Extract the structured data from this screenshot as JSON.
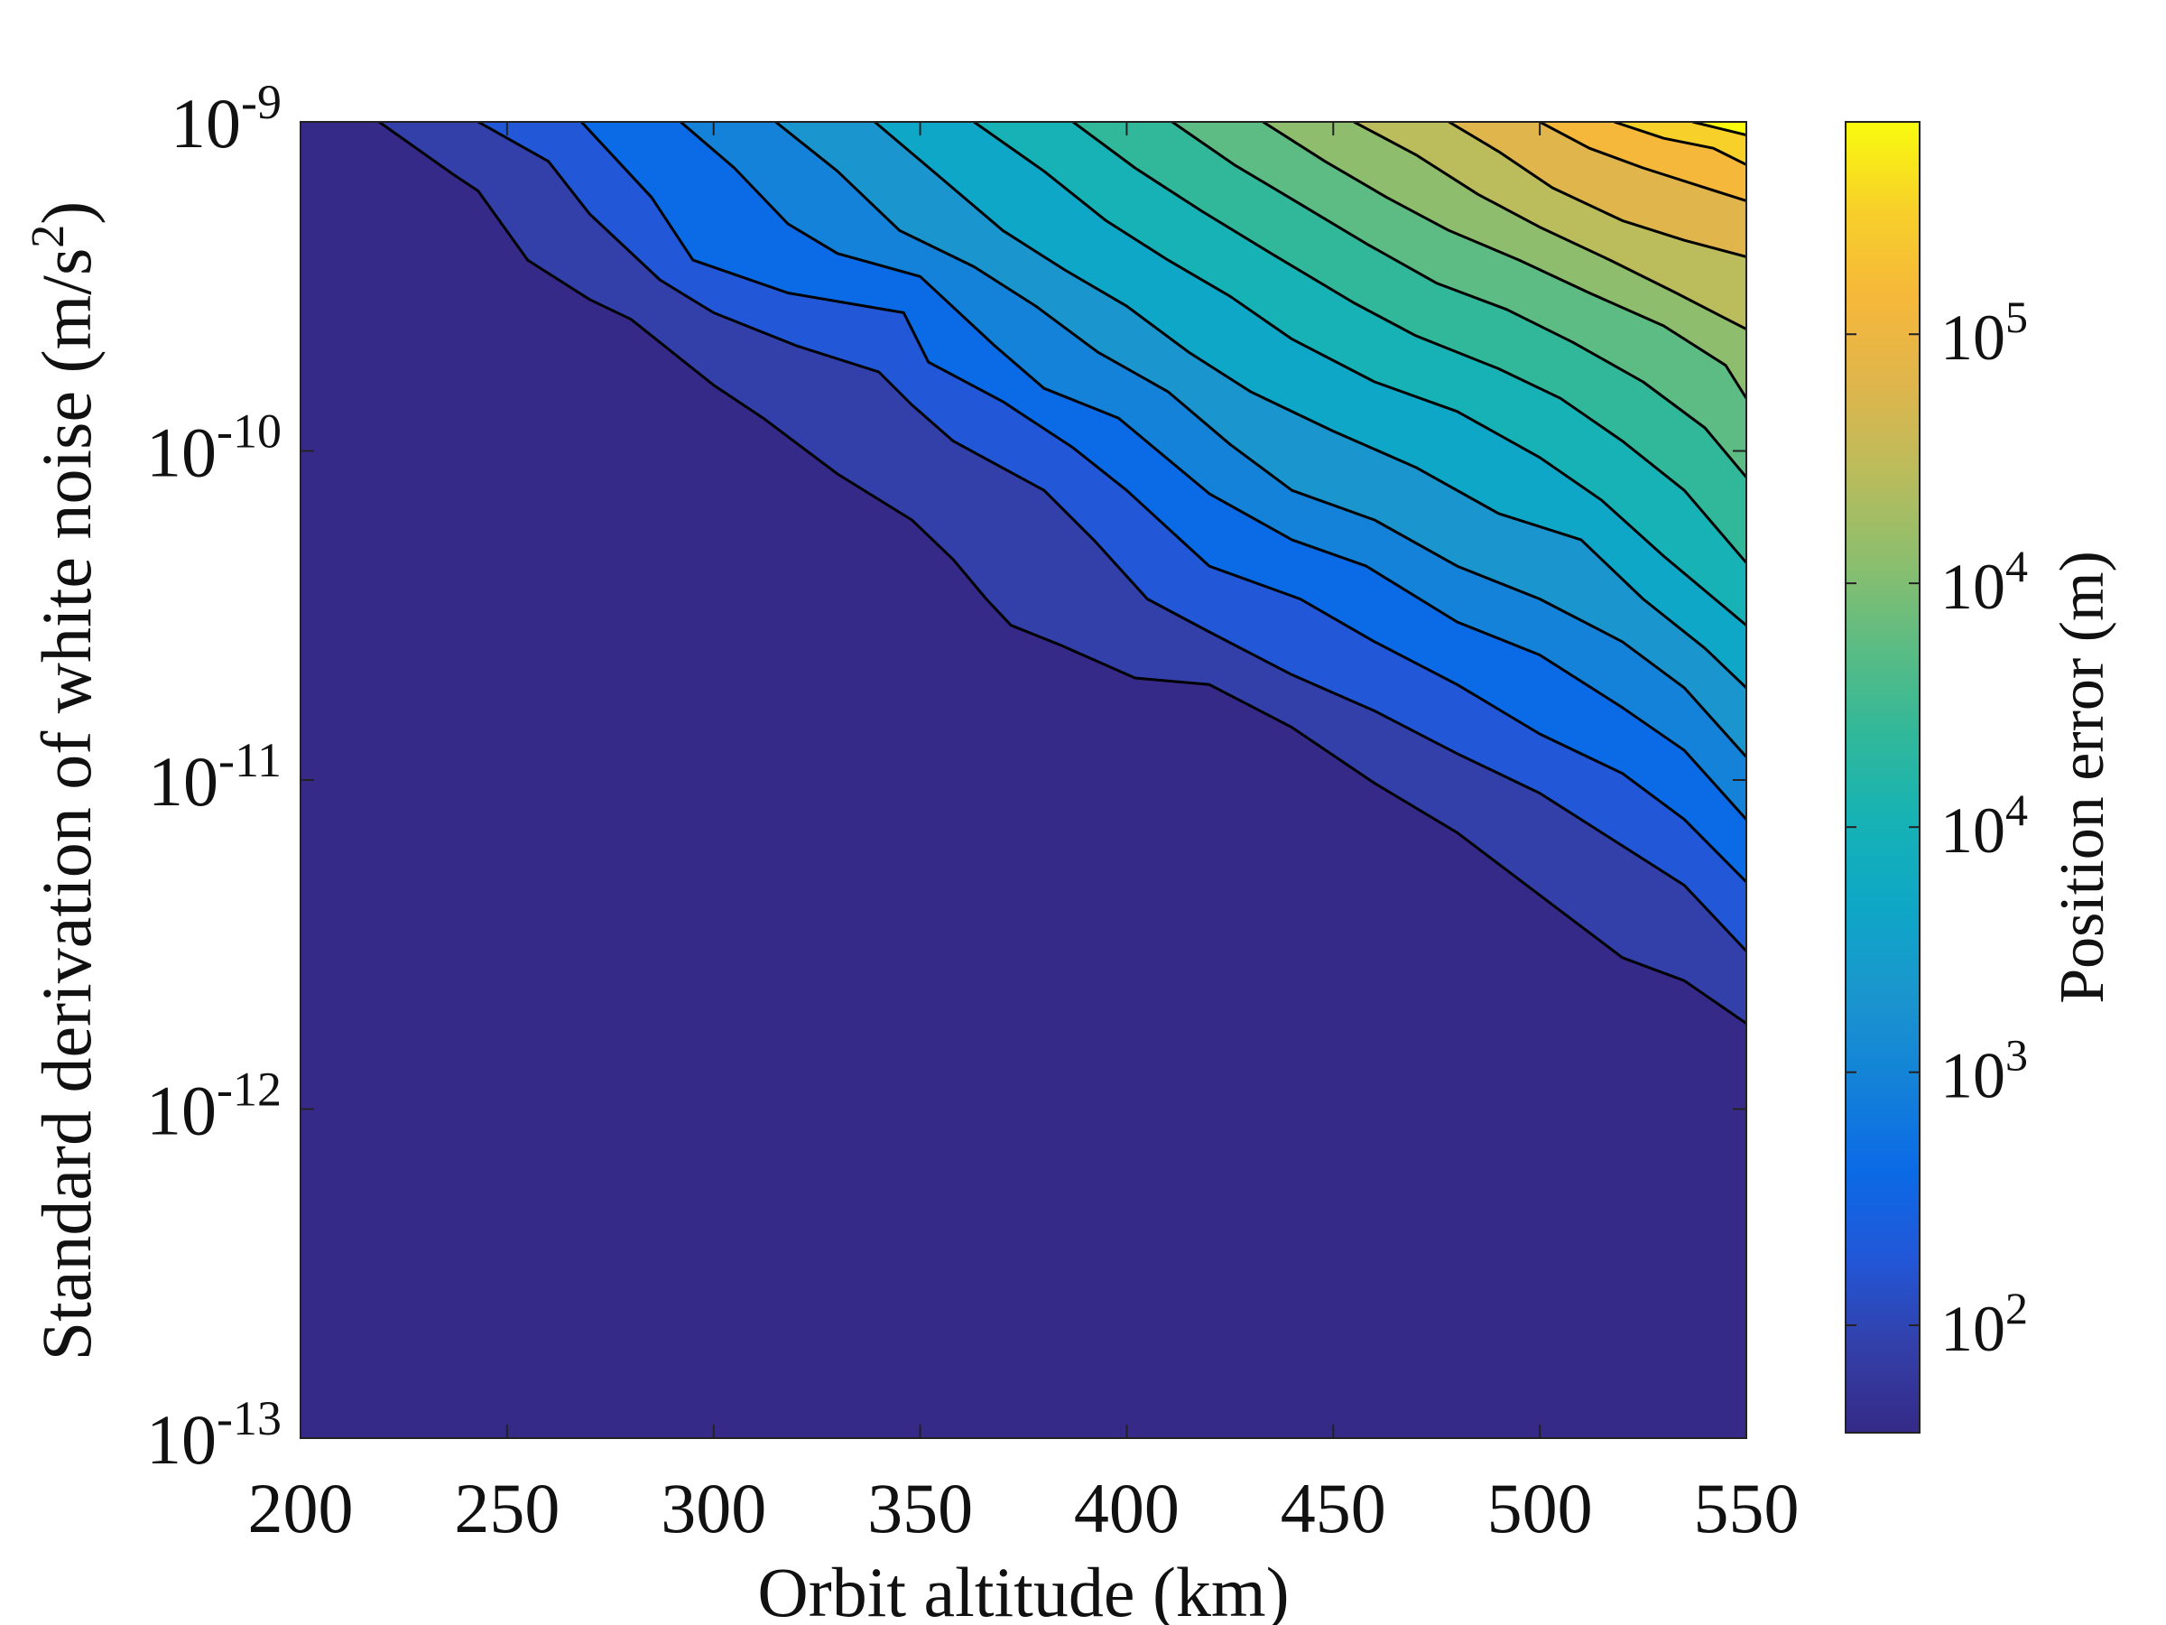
{
  "chart_data": {
    "type": "contour",
    "xlabel": "Orbit altitude (km)",
    "ylabel_main": "Standard derivation of white noise (m/s",
    "ylabel_sup": "2",
    "ylabel_end": ")",
    "xlim": [
      200,
      550
    ],
    "ylim_log10": [
      -13,
      -9
    ],
    "y_scale": "log",
    "x_ticks": [
      200,
      250,
      300,
      350,
      400,
      450,
      500,
      550
    ],
    "x_tick_labels": [
      "200",
      "250",
      "300",
      "350",
      "400",
      "450",
      "500",
      "550"
    ],
    "y_ticks_log10": [
      -13,
      -12,
      -11,
      -10,
      -9
    ],
    "y_tick_labels": [
      {
        "base": "10",
        "exp": "-13"
      },
      {
        "base": "10",
        "exp": "-12"
      },
      {
        "base": "10",
        "exp": "-11"
      },
      {
        "base": "10",
        "exp": "-10"
      },
      {
        "base": "10",
        "exp": "-9"
      }
    ],
    "colormap": [
      "#352a87",
      "#3340a9",
      "#2257d8",
      "#0b6ae6",
      "#1382d8",
      "#1b95ce",
      "#0ea7c7",
      "#16b2b5",
      "#31b89a",
      "#5cbc83",
      "#8ebe6d",
      "#bbbc5c",
      "#dfb54c",
      "#f6b83a",
      "#f7d02a",
      "#f9fb0e"
    ],
    "contour_lines": [
      {
        "level": 1,
        "points": [
          [
            219,
            -9.0
          ],
          [
            237,
            -9.16
          ],
          [
            243,
            -9.21
          ],
          [
            255,
            -9.42
          ],
          [
            270,
            -9.54
          ],
          [
            280,
            -9.6
          ],
          [
            300,
            -9.8
          ],
          [
            312,
            -9.9
          ],
          [
            330,
            -10.07
          ],
          [
            348,
            -10.21
          ],
          [
            358,
            -10.33
          ],
          [
            366,
            -10.45
          ],
          [
            372,
            -10.53
          ],
          [
            384,
            -10.59
          ],
          [
            402,
            -10.69
          ],
          [
            420,
            -10.71
          ],
          [
            440,
            -10.84
          ],
          [
            460,
            -11.01
          ],
          [
            480,
            -11.16
          ],
          [
            500,
            -11.35
          ],
          [
            520,
            -11.54
          ],
          [
            535,
            -11.61
          ],
          [
            550,
            -11.74
          ]
        ]
      },
      {
        "level": 2,
        "points": [
          [
            243,
            -9.0
          ],
          [
            260,
            -9.12
          ],
          [
            270,
            -9.28
          ],
          [
            287,
            -9.48
          ],
          [
            300,
            -9.58
          ],
          [
            320,
            -9.68
          ],
          [
            340,
            -9.76
          ],
          [
            348,
            -9.86
          ],
          [
            358,
            -9.97
          ],
          [
            380,
            -10.12
          ],
          [
            392,
            -10.27
          ],
          [
            405,
            -10.45
          ],
          [
            420,
            -10.55
          ],
          [
            440,
            -10.68
          ],
          [
            460,
            -10.79
          ],
          [
            480,
            -10.92
          ],
          [
            500,
            -11.04
          ],
          [
            520,
            -11.2
          ],
          [
            535,
            -11.32
          ],
          [
            550,
            -11.52
          ]
        ]
      },
      {
        "level": 3,
        "points": [
          [
            268,
            -9.0
          ],
          [
            285,
            -9.23
          ],
          [
            295,
            -9.42
          ],
          [
            318,
            -9.52
          ],
          [
            346,
            -9.58
          ],
          [
            352,
            -9.73
          ],
          [
            370,
            -9.85
          ],
          [
            387,
            -9.99
          ],
          [
            400,
            -10.12
          ],
          [
            420,
            -10.35
          ],
          [
            442,
            -10.45
          ],
          [
            460,
            -10.58
          ],
          [
            480,
            -10.71
          ],
          [
            500,
            -10.86
          ],
          [
            520,
            -10.98
          ],
          [
            535,
            -11.12
          ],
          [
            550,
            -11.31
          ]
        ]
      },
      {
        "level": 4,
        "points": [
          [
            292,
            -9.0
          ],
          [
            305,
            -9.14
          ],
          [
            318,
            -9.31
          ],
          [
            330,
            -9.4
          ],
          [
            350,
            -9.47
          ],
          [
            368,
            -9.68
          ],
          [
            380,
            -9.81
          ],
          [
            398,
            -9.9
          ],
          [
            420,
            -10.13
          ],
          [
            440,
            -10.27
          ],
          [
            458,
            -10.35
          ],
          [
            480,
            -10.52
          ],
          [
            500,
            -10.62
          ],
          [
            520,
            -10.78
          ],
          [
            535,
            -10.91
          ],
          [
            550,
            -11.12
          ]
        ]
      },
      {
        "level": 5,
        "points": [
          [
            315,
            -9.0
          ],
          [
            330,
            -9.15
          ],
          [
            345,
            -9.33
          ],
          [
            363,
            -9.44
          ],
          [
            378,
            -9.56
          ],
          [
            393,
            -9.7
          ],
          [
            410,
            -9.82
          ],
          [
            425,
            -9.98
          ],
          [
            440,
            -10.12
          ],
          [
            460,
            -10.21
          ],
          [
            480,
            -10.35
          ],
          [
            500,
            -10.45
          ],
          [
            520,
            -10.58
          ],
          [
            535,
            -10.72
          ],
          [
            550,
            -10.93
          ]
        ]
      },
      {
        "level": 6,
        "points": [
          [
            339,
            -9.0
          ],
          [
            355,
            -9.17
          ],
          [
            370,
            -9.33
          ],
          [
            385,
            -9.45
          ],
          [
            400,
            -9.56
          ],
          [
            415,
            -9.7
          ],
          [
            430,
            -9.82
          ],
          [
            450,
            -9.94
          ],
          [
            470,
            -10.05
          ],
          [
            490,
            -10.19
          ],
          [
            510,
            -10.27
          ],
          [
            525,
            -10.45
          ],
          [
            540,
            -10.6
          ],
          [
            550,
            -10.72
          ]
        ]
      },
      {
        "level": 7,
        "points": [
          [
            363,
            -9.0
          ],
          [
            380,
            -9.15
          ],
          [
            395,
            -9.3
          ],
          [
            410,
            -9.42
          ],
          [
            425,
            -9.53
          ],
          [
            440,
            -9.66
          ],
          [
            460,
            -9.79
          ],
          [
            480,
            -9.88
          ],
          [
            500,
            -10.02
          ],
          [
            515,
            -10.15
          ],
          [
            530,
            -10.32
          ],
          [
            550,
            -10.53
          ]
        ]
      },
      {
        "level": 8,
        "points": [
          [
            387,
            -9.0
          ],
          [
            402,
            -9.14
          ],
          [
            418,
            -9.27
          ],
          [
            435,
            -9.4
          ],
          [
            455,
            -9.55
          ],
          [
            470,
            -9.65
          ],
          [
            490,
            -9.75
          ],
          [
            505,
            -9.84
          ],
          [
            520,
            -9.97
          ],
          [
            535,
            -10.12
          ],
          [
            550,
            -10.34
          ]
        ]
      },
      {
        "level": 9,
        "points": [
          [
            411,
            -9.0
          ],
          [
            426,
            -9.13
          ],
          [
            442,
            -9.25
          ],
          [
            458,
            -9.37
          ],
          [
            475,
            -9.49
          ],
          [
            492,
            -9.57
          ],
          [
            508,
            -9.67
          ],
          [
            525,
            -9.79
          ],
          [
            540,
            -9.93
          ],
          [
            550,
            -10.08
          ]
        ]
      },
      {
        "level": 10,
        "points": [
          [
            433,
            -9.0
          ],
          [
            448,
            -9.12
          ],
          [
            463,
            -9.23
          ],
          [
            478,
            -9.33
          ],
          [
            495,
            -9.42
          ],
          [
            512,
            -9.52
          ],
          [
            530,
            -9.62
          ],
          [
            545,
            -9.74
          ],
          [
            550,
            -9.84
          ]
        ]
      },
      {
        "level": 11,
        "points": [
          [
            455,
            -9.0
          ],
          [
            470,
            -9.1
          ],
          [
            485,
            -9.22
          ],
          [
            500,
            -9.32
          ],
          [
            517,
            -9.42
          ],
          [
            533,
            -9.52
          ],
          [
            550,
            -9.63
          ]
        ]
      },
      {
        "level": 12,
        "points": [
          [
            478,
            -9.0
          ],
          [
            490,
            -9.09
          ],
          [
            503,
            -9.2
          ],
          [
            520,
            -9.3
          ],
          [
            535,
            -9.36
          ],
          [
            550,
            -9.41
          ]
        ]
      },
      {
        "level": 13,
        "points": [
          [
            500,
            -9.0
          ],
          [
            512,
            -9.08
          ],
          [
            525,
            -9.14
          ],
          [
            540,
            -9.2
          ],
          [
            550,
            -9.24
          ]
        ]
      },
      {
        "level": 14,
        "points": [
          [
            518,
            -9.0
          ],
          [
            530,
            -9.05
          ],
          [
            542,
            -9.08
          ],
          [
            550,
            -9.13
          ]
        ]
      },
      {
        "level": 15,
        "points": [
          [
            537,
            -9.0
          ],
          [
            550,
            -9.04
          ]
        ]
      }
    ],
    "colorbar": {
      "label": "Position error (m)",
      "ticks": [
        {
          "frac": 0.082,
          "base": "10",
          "exp": "2"
        },
        {
          "frac": 0.275,
          "base": "10",
          "exp": "3"
        },
        {
          "frac": 0.462,
          "base": "10",
          "exp": "4"
        },
        {
          "frac": 0.648,
          "base": "10",
          "exp": "4"
        },
        {
          "frac": 0.838,
          "base": "10",
          "exp": "5"
        }
      ]
    }
  }
}
